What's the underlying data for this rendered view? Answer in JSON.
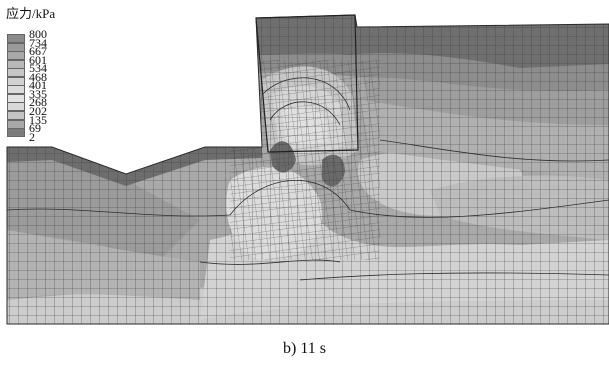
{
  "legend": {
    "title": "应力/kPa",
    "levels": [
      "800",
      "734",
      "667",
      "601",
      "534",
      "468",
      "401",
      "335",
      "268",
      "202",
      "135",
      "69",
      "2"
    ],
    "colors": [
      "#8a8a8a",
      "#9a9a9a",
      "#a8a8a8",
      "#b8b8b8",
      "#c6c6c6",
      "#d2d2d2",
      "#dcdcdc",
      "#e2e2e2",
      "#d8d8d8",
      "#c4c4c4",
      "#a8a8a8",
      "#7c7c7c",
      "#5e5e5e"
    ]
  },
  "caption": "b) 11 s",
  "colors": {
    "mesh_line": "#404040",
    "dark_band": "#6e6e6e",
    "mid_gray": "#9c9c9c",
    "light_gray": "#cfcfcf",
    "pale": "#dedede"
  }
}
